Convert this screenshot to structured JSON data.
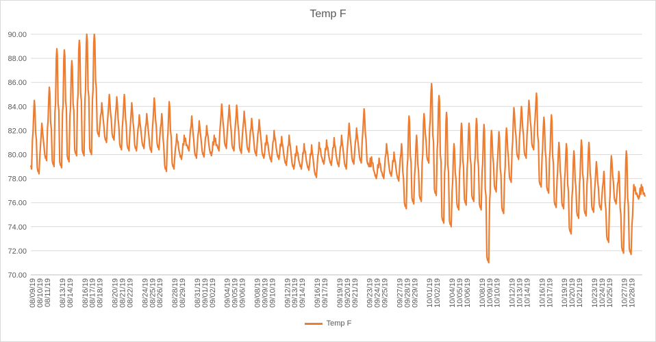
{
  "chart_data": {
    "type": "line",
    "title": "Temp F",
    "xlabel": "",
    "ylabel": "",
    "ylim": [
      70,
      90
    ],
    "yticks": [
      "70.00",
      "72.00",
      "74.00",
      "76.00",
      "78.00",
      "80.00",
      "82.00",
      "84.00",
      "86.00",
      "88.00",
      "90.00"
    ],
    "x_tick_labels": [
      "08/09/19",
      "08/10/19",
      "08/11/19",
      "08/13/19",
      "08/14/19",
      "08/16/19",
      "08/17/19",
      "08/18/19",
      "08/20/19",
      "08/21/19",
      "08/22/19",
      "08/24/19",
      "08/25/19",
      "08/26/19",
      "08/28/19",
      "08/29/19",
      "08/31/19",
      "09/01/19",
      "09/02/19",
      "09/04/19",
      "09/05/19",
      "09/06/19",
      "09/08/19",
      "09/09/19",
      "09/10/19",
      "09/12/19",
      "09/13/19",
      "09/14/19",
      "09/16/19",
      "09/17/19",
      "09/19/19",
      "09/20/19",
      "09/21/19",
      "09/23/19",
      "09/24/19",
      "09/25/19",
      "09/27/19",
      "09/28/19",
      "09/29/19",
      "10/01/19",
      "10/02/19",
      "10/04/19",
      "10/05/19",
      "10/06/19",
      "10/08/19",
      "10/09/19",
      "10/10/19",
      "10/12/19",
      "10/13/19",
      "10/14/19",
      "10/16/19",
      "10/17/19",
      "10/19/19",
      "10/20/19",
      "10/21/19",
      "10/23/19",
      "10/24/19",
      "10/25/19",
      "10/27/19",
      "10/28/19"
    ],
    "grid": "horizontal",
    "legend_position": "bottom",
    "series": [
      {
        "name": "Temp F",
        "color": "#ED7D31",
        "x": [
          "08/09/19",
          "08/10/19",
          "08/11/19",
          "08/12/19",
          "08/13/19",
          "08/14/19",
          "08/15/19",
          "08/16/19",
          "08/17/19",
          "08/18/19",
          "08/19/19",
          "08/20/19",
          "08/21/19",
          "08/22/19",
          "08/23/19",
          "08/24/19",
          "08/25/19",
          "08/26/19",
          "08/27/19",
          "08/28/19",
          "08/29/19",
          "08/30/19",
          "08/31/19",
          "09/01/19",
          "09/02/19",
          "09/03/19",
          "09/04/19",
          "09/05/19",
          "09/06/19",
          "09/07/19",
          "09/08/19",
          "09/09/19",
          "09/10/19",
          "09/11/19",
          "09/12/19",
          "09/13/19",
          "09/14/19",
          "09/15/19",
          "09/16/19",
          "09/17/19",
          "09/18/19",
          "09/19/19",
          "09/20/19",
          "09/21/19",
          "09/22/19",
          "09/23/19",
          "09/24/19",
          "09/25/19",
          "09/26/19",
          "09/27/19",
          "09/28/19",
          "09/29/19",
          "09/30/19",
          "10/01/19",
          "10/02/19",
          "10/03/19",
          "10/04/19",
          "10/05/19",
          "10/06/19",
          "10/07/19",
          "10/08/19",
          "10/09/19",
          "10/10/19",
          "10/11/19",
          "10/12/19",
          "10/13/19",
          "10/14/19",
          "10/15/19",
          "10/16/19",
          "10/17/19",
          "10/18/19",
          "10/19/19",
          "10/20/19",
          "10/21/19",
          "10/22/19",
          "10/23/19",
          "10/24/19",
          "10/25/19",
          "10/26/19",
          "10/27/19",
          "10/28/19",
          "10/29/19"
        ],
        "high": [
          84.5,
          82.6,
          85.6,
          88.8,
          88.7,
          87.8,
          89.5,
          90.0,
          90.0,
          84.3,
          85.0,
          84.8,
          85.0,
          84.3,
          83.3,
          83.4,
          84.7,
          83.4,
          84.4,
          81.7,
          81.6,
          83.2,
          82.8,
          82.4,
          81.6,
          84.2,
          84.1,
          84.1,
          83.6,
          83.0,
          82.9,
          81.6,
          82.0,
          81.5,
          81.6,
          80.7,
          80.9,
          80.8,
          81.0,
          81.2,
          81.4,
          81.6,
          82.6,
          82.2,
          83.8,
          79.8,
          79.7,
          80.9,
          80.2,
          80.9,
          83.2,
          81.6,
          83.4,
          85.9,
          84.9,
          83.5,
          80.9,
          82.6,
          82.6,
          83.0,
          82.5,
          82.0,
          81.9,
          82.2,
          83.9,
          84.0,
          84.5,
          85.1,
          83.1,
          83.3,
          81.0,
          80.9,
          80.3,
          81.2,
          81.0,
          79.4,
          78.6,
          79.9,
          78.6,
          80.3,
          77.5,
          77.5
        ],
        "low": [
          78.8,
          78.4,
          79.5,
          79.0,
          78.9,
          79.4,
          79.9,
          79.9,
          80.0,
          81.5,
          81.0,
          81.2,
          80.4,
          80.3,
          80.3,
          80.5,
          80.2,
          80.4,
          78.6,
          78.8,
          79.6,
          80.3,
          79.7,
          79.8,
          79.9,
          80.3,
          80.5,
          80.3,
          80.1,
          80.2,
          79.9,
          79.7,
          79.4,
          79.6,
          79.1,
          78.8,
          78.8,
          78.7,
          78.1,
          79.2,
          79.1,
          79.0,
          78.8,
          79.2,
          79.3,
          79.0,
          78.0,
          78.0,
          78.2,
          77.8,
          75.5,
          75.9,
          76.1,
          79.3,
          76.6,
          74.3,
          74.0,
          75.4,
          75.8,
          76.1,
          75.4,
          71.0,
          76.9,
          75.1,
          77.7,
          79.6,
          79.7,
          80.4,
          77.3,
          76.8,
          75.6,
          75.5,
          73.4,
          74.7,
          74.9,
          75.2,
          75.4,
          72.7,
          75.9,
          71.8,
          71.7,
          76.3
        ]
      }
    ]
  }
}
